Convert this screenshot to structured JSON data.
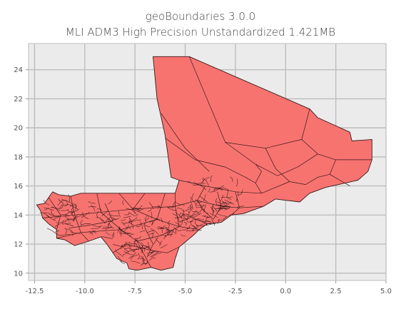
{
  "title": {
    "line1": "geoBoundaries 3.0.0",
    "line2": "MLI ADM3 High Precision Unstandardized 1.421MB"
  },
  "chart_data": {
    "type": "map",
    "region": "MLI ADM3",
    "xlim": [
      -12.8,
      5.0
    ],
    "ylim": [
      9.5,
      25.8
    ],
    "x_ticks": [
      -12.5,
      -10.0,
      -7.5,
      -5.0,
      -2.5,
      0.0,
      2.5,
      5.0
    ],
    "x_tick_labels": [
      "-12.5",
      "-10.0",
      "-7.5",
      "-5.0",
      "-2.5",
      "0.0",
      "2.5",
      "5.0"
    ],
    "y_ticks": [
      10,
      12,
      14,
      16,
      18,
      20,
      22,
      24
    ],
    "y_tick_labels": [
      "10",
      "12",
      "14",
      "16",
      "18",
      "20",
      "22",
      "24"
    ],
    "grid": true,
    "colors": {
      "fill": "#f77370",
      "edge": "#3a1a1a",
      "background": "#ebebeb",
      "grid": "#bdbdbd"
    },
    "outline": [
      [
        -6.6,
        24.9
      ],
      [
        -4.8,
        24.9
      ],
      [
        1.2,
        21.3
      ],
      [
        1.6,
        20.7
      ],
      [
        3.2,
        19.7
      ],
      [
        3.3,
        19.1
      ],
      [
        4.3,
        19.2
      ],
      [
        4.3,
        17.8
      ],
      [
        4.1,
        17.0
      ],
      [
        3.6,
        16.4
      ],
      [
        2.0,
        15.9
      ],
      [
        1.2,
        15.5
      ],
      [
        0.7,
        14.9
      ],
      [
        -0.5,
        15.1
      ],
      [
        -1.1,
        14.6
      ],
      [
        -2.1,
        14.1
      ],
      [
        -2.7,
        14.0
      ],
      [
        -3.2,
        13.5
      ],
      [
        -3.9,
        13.4
      ],
      [
        -4.3,
        13.0
      ],
      [
        -4.6,
        12.6
      ],
      [
        -5.3,
        11.8
      ],
      [
        -5.5,
        11.0
      ],
      [
        -5.6,
        10.4
      ],
      [
        -6.2,
        10.2
      ],
      [
        -6.7,
        10.4
      ],
      [
        -7.4,
        10.2
      ],
      [
        -7.8,
        10.3
      ],
      [
        -7.9,
        10.7
      ],
      [
        -8.4,
        11.0
      ],
      [
        -8.6,
        11.4
      ],
      [
        -8.9,
        12.0
      ],
      [
        -9.2,
        12.5
      ],
      [
        -9.8,
        12.2
      ],
      [
        -10.5,
        11.9
      ],
      [
        -11.0,
        12.3
      ],
      [
        -11.4,
        12.4
      ],
      [
        -11.4,
        13.0
      ],
      [
        -11.8,
        13.4
      ],
      [
        -12.1,
        13.8
      ],
      [
        -12.2,
        14.3
      ],
      [
        -12.4,
        14.7
      ],
      [
        -12.0,
        14.8
      ],
      [
        -11.8,
        15.2
      ],
      [
        -11.6,
        15.6
      ],
      [
        -11.3,
        15.4
      ],
      [
        -10.7,
        15.3
      ],
      [
        -10.2,
        15.5
      ],
      [
        -9.4,
        15.5
      ],
      [
        -8.3,
        15.5
      ],
      [
        -5.5,
        15.5
      ],
      [
        -5.3,
        16.4
      ],
      [
        -5.7,
        16.6
      ],
      [
        -6.0,
        19.5
      ],
      [
        -6.4,
        22.0
      ]
    ],
    "internal_boundaries": [
      [
        [
          -4.8,
          24.9
        ],
        [
          -3.0,
          19.0
        ],
        [
          -1.5,
          17.5
        ],
        [
          -0.4,
          16.7
        ]
      ],
      [
        [
          -6.0,
          19.3
        ],
        [
          -4.5,
          17.8
        ],
        [
          -3.0,
          17.3
        ]
      ],
      [
        [
          -6.2,
          21.0
        ],
        [
          -5.0,
          18.6
        ],
        [
          -3.8,
          17.0
        ]
      ],
      [
        [
          -3.0,
          19.0
        ],
        [
          -1.0,
          18.6
        ],
        [
          0.8,
          19.2
        ],
        [
          1.2,
          21.3
        ]
      ],
      [
        [
          -1.0,
          18.6
        ],
        [
          -0.5,
          17.2
        ],
        [
          0.2,
          16.3
        ],
        [
          1.0,
          16.1
        ]
      ],
      [
        [
          0.8,
          19.2
        ],
        [
          1.6,
          18.2
        ],
        [
          2.5,
          17.8
        ],
        [
          4.3,
          17.8
        ]
      ],
      [
        [
          2.5,
          17.8
        ],
        [
          2.2,
          16.8
        ],
        [
          3.2,
          16.0
        ]
      ],
      [
        [
          1.6,
          18.2
        ],
        [
          0.6,
          17.3
        ],
        [
          -0.4,
          16.7
        ]
      ],
      [
        [
          -5.3,
          16.4
        ],
        [
          -4.0,
          16.0
        ],
        [
          -2.5,
          15.6
        ],
        [
          -1.2,
          15.5
        ],
        [
          0.2,
          16.3
        ]
      ],
      [
        [
          -2.5,
          15.6
        ],
        [
          -2.3,
          14.5
        ],
        [
          -2.7,
          14.0
        ]
      ],
      [
        [
          -4.0,
          16.0
        ],
        [
          -4.4,
          15.0
        ],
        [
          -4.0,
          14.2
        ],
        [
          -3.6,
          13.7
        ]
      ],
      [
        [
          -8.3,
          15.5
        ],
        [
          -7.6,
          14.4
        ],
        [
          -6.4,
          13.7
        ],
        [
          -5.3,
          13.2
        ],
        [
          -4.3,
          13.0
        ]
      ],
      [
        [
          -9.4,
          15.5
        ],
        [
          -9.2,
          14.2
        ],
        [
          -8.2,
          13.0
        ],
        [
          -7.4,
          12.2
        ],
        [
          -6.7,
          10.4
        ]
      ],
      [
        [
          -10.7,
          15.3
        ],
        [
          -10.5,
          14.0
        ],
        [
          -10.2,
          12.8
        ],
        [
          -9.8,
          12.2
        ]
      ],
      [
        [
          -11.8,
          15.2
        ],
        [
          -11.2,
          14.0
        ],
        [
          -11.4,
          13.0
        ]
      ],
      [
        [
          -12.1,
          13.8
        ],
        [
          -10.5,
          14.0
        ],
        [
          -9.2,
          14.2
        ],
        [
          -7.6,
          14.4
        ],
        [
          -5.5,
          14.6
        ],
        [
          -4.4,
          15.0
        ]
      ],
      [
        [
          -11.4,
          12.4
        ],
        [
          -10.2,
          12.8
        ],
        [
          -8.2,
          13.0
        ],
        [
          -6.4,
          13.7
        ]
      ],
      [
        [
          -8.6,
          11.4
        ],
        [
          -7.9,
          12.0
        ],
        [
          -6.8,
          11.6
        ],
        [
          -5.9,
          11.4
        ],
        [
          -5.3,
          11.8
        ]
      ],
      [
        [
          -7.4,
          12.2
        ],
        [
          -6.2,
          12.6
        ],
        [
          -5.3,
          13.2
        ]
      ],
      [
        [
          -6.4,
          13.7
        ],
        [
          -6.0,
          15.5
        ]
      ],
      [
        [
          -7.6,
          14.4
        ],
        [
          -7.0,
          15.5
        ]
      ],
      [
        [
          -4.4,
          15.0
        ],
        [
          -3.2,
          14.6
        ],
        [
          -2.3,
          14.5
        ],
        [
          -1.1,
          14.6
        ]
      ],
      [
        [
          -3.6,
          13.7
        ],
        [
          -3.2,
          14.6
        ],
        [
          -3.4,
          15.6
        ]
      ],
      [
        [
          -5.5,
          15.5
        ],
        [
          -5.5,
          14.6
        ],
        [
          -5.3,
          13.2
        ]
      ],
      [
        [
          -1.2,
          15.5
        ],
        [
          -1.5,
          16.2
        ],
        [
          -1.2,
          17.0
        ],
        [
          -1.5,
          17.5
        ]
      ],
      [
        [
          1.0,
          16.1
        ],
        [
          1.6,
          16.6
        ],
        [
          2.2,
          16.8
        ]
      ],
      [
        [
          -3.0,
          17.3
        ],
        [
          -2.0,
          16.6
        ],
        [
          -1.5,
          16.2
        ]
      ],
      [
        [
          -9.0,
          14.8
        ],
        [
          -8.6,
          13.6
        ],
        [
          -9.8,
          13.3
        ],
        [
          -10.8,
          13.1
        ]
      ],
      [
        [
          -7.0,
          13.1
        ],
        [
          -6.6,
          12.0
        ],
        [
          -6.9,
          11.1
        ]
      ],
      [
        [
          -4.8,
          13.9
        ],
        [
          -3.9,
          13.4
        ]
      ]
    ]
  }
}
